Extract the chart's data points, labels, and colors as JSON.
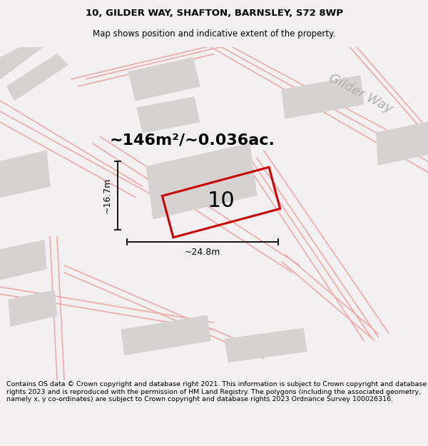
{
  "title_line1": "10, GILDER WAY, SHAFTON, BARNSLEY, S72 8WP",
  "title_line2": "Map shows position and indicative extent of the property.",
  "footer_text": "Contains OS data © Crown copyright and database right 2021. This information is subject to Crown copyright and database rights 2023 and is reproduced with the permission of HM Land Registry. The polygons (including the associated geometry, namely x, y co-ordinates) are subject to Crown copyright and database rights 2023 Ordnance Survey 100026316.",
  "area_label": "~146m²/~0.036ac.",
  "property_number": "10",
  "dim_width": "~24.8m",
  "dim_height": "~16.7m",
  "street_label": "Gilder Way",
  "bg_color": "#f2f0f0",
  "map_bg": "#eeecec",
  "building_fill": "#d6d2d2",
  "building_edge": "#d6d2d2",
  "road_line_color": "#f0aaaa",
  "property_outline_color": "#cc0000",
  "title_fontsize": 9.5,
  "subtitle_fontsize": 8.5,
  "footer_fontsize": 6.8
}
